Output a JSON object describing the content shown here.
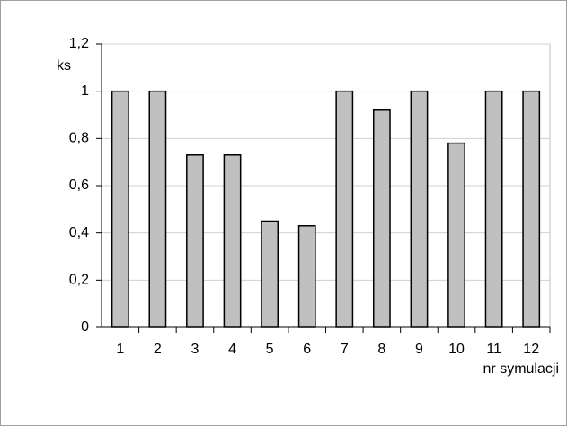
{
  "chart_data": {
    "type": "bar",
    "y_label": "ks",
    "x_label": "nr symulacji",
    "categories": [
      "1",
      "2",
      "3",
      "4",
      "5",
      "6",
      "7",
      "8",
      "9",
      "10",
      "11",
      "12"
    ],
    "values": [
      1,
      1,
      0.73,
      0.73,
      0.45,
      0.43,
      1,
      0.92,
      1,
      0.78,
      1,
      1
    ],
    "color": "#c0c0c0",
    "ylim": [
      0,
      1.2
    ],
    "yticks": [
      0,
      {
        "value": 0.2,
        "label": "0,2"
      },
      {
        "value": 0.4,
        "label": "0,4"
      },
      {
        "value": 0.6,
        "label": "0,6"
      },
      {
        "value": 0.8,
        "label": "0,8"
      },
      1,
      {
        "value": 1.2,
        "label": "1,2"
      }
    ],
    "grid": true
  }
}
